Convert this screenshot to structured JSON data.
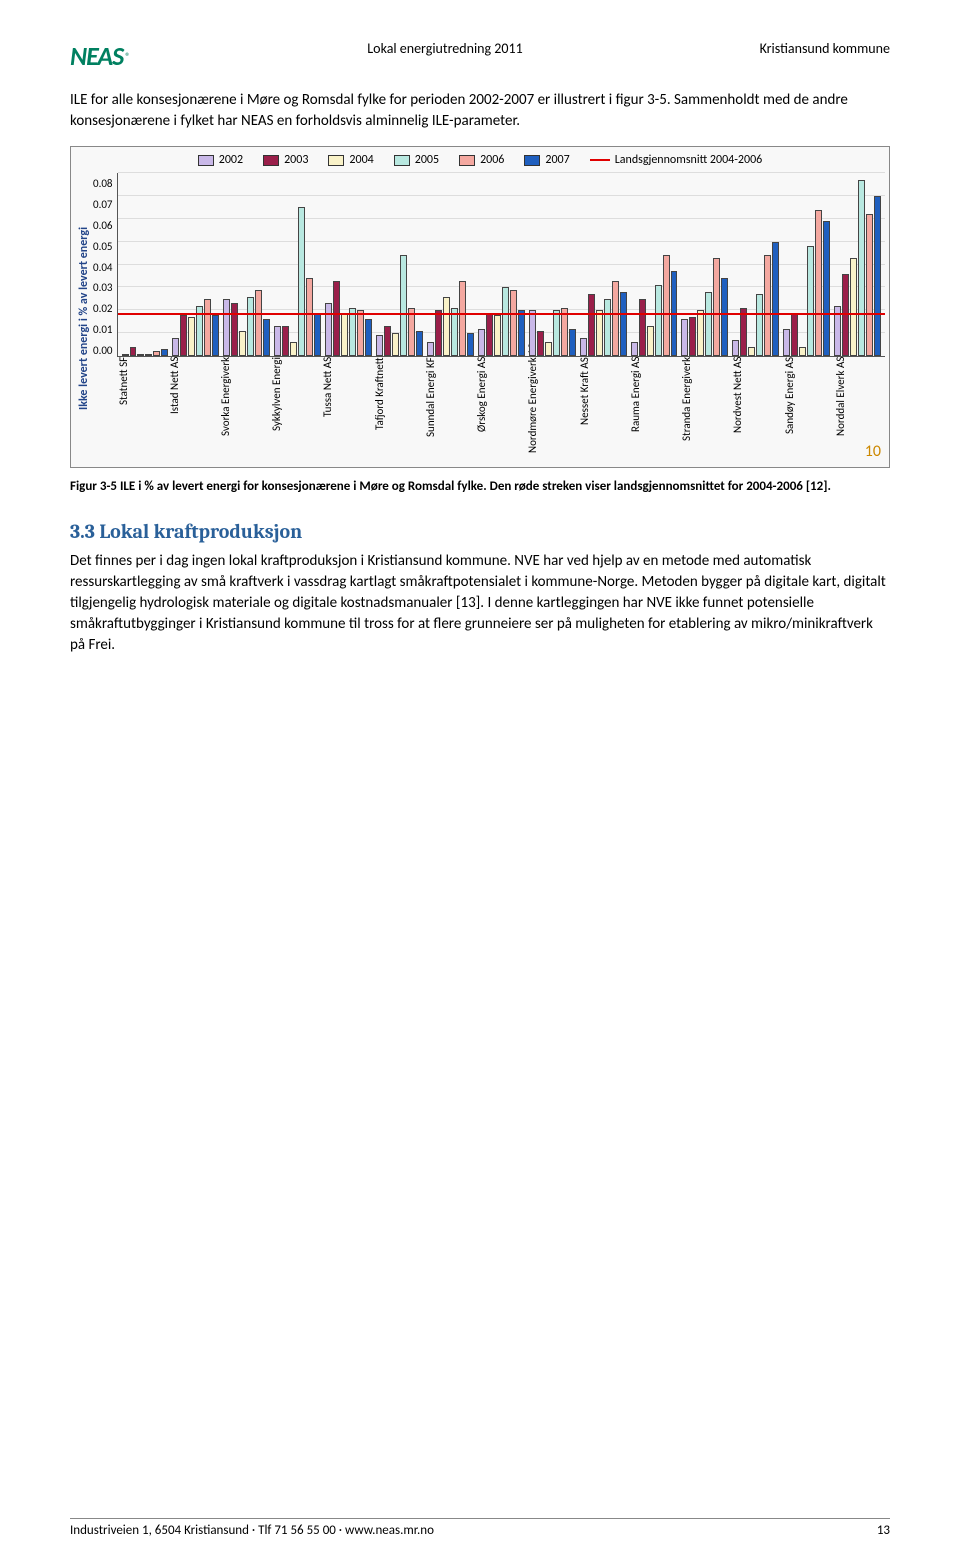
{
  "header": {
    "title_center": "Lokal energiutredning 2011",
    "title_right": "Kristiansund kommune",
    "logo_text": "NEAS",
    "logo_reg": "®"
  },
  "intro_paragraph": "ILE for alle konsesjonærene i Møre og Romsdal fylke for perioden 2002-2007 er illustrert i figur 3-5. Sammenholdt med de andre konsesjonærene i fylket har NEAS en forholdsvis alminnelig ILE-parameter.",
  "chart": {
    "type": "bar",
    "ylabel": "Ikke levert energi i % av levert energi",
    "ylim": [
      0,
      0.08
    ],
    "ytick_step": 0.01,
    "yticks": [
      "0.08",
      "0.07",
      "0.06",
      "0.05",
      "0.04",
      "0.03",
      "0.02",
      "0.01",
      "0.00"
    ],
    "background_color": "#f8f8f8",
    "grid_color": "#dddddd",
    "red_line_value": 0.018,
    "red_line_color": "#e00000",
    "corner_number": "10",
    "legend": [
      {
        "label": "2002",
        "color": "#c9b8e8"
      },
      {
        "label": "2003",
        "color": "#9a1f4a"
      },
      {
        "label": "2004",
        "color": "#f9f2c8"
      },
      {
        "label": "2005",
        "color": "#b8e8e0"
      },
      {
        "label": "2006",
        "color": "#f4a8a0"
      },
      {
        "label": "2007",
        "color": "#1f5fbf"
      },
      {
        "label": "Landsgjennomsnitt 2004-2006",
        "color": "#e00000",
        "is_line": true
      }
    ],
    "categories": [
      "Statnett SF",
      "Istad Nett AS",
      "Svorka Energiverk",
      "Sykkylven Energi",
      "Tussa Nett AS",
      "Tafjord Kraftnett",
      "Sunndal Energi KF",
      "Ørskog Energi AS",
      "Nordmøre Energiverk AS",
      "Nesset Kraft AS",
      "Rauma Energi AS",
      "Stranda Energiverk",
      "Nordvest Nett AS",
      "Sandøy Energi AS",
      "Norddal Elverk AS"
    ],
    "series": [
      [
        0.0,
        0.008,
        0.025,
        0.013,
        0.023,
        0.009,
        0.006,
        0.012,
        0.02,
        0.008,
        0.006,
        0.016,
        0.007,
        0.012,
        0.022
      ],
      [
        0.004,
        0.018,
        0.023,
        0.013,
        0.033,
        0.013,
        0.02,
        0.019,
        0.011,
        0.027,
        0.025,
        0.017,
        0.021,
        0.019,
        0.036
      ],
      [
        0.0,
        0.017,
        0.011,
        0.006,
        0.019,
        0.01,
        0.026,
        0.018,
        0.006,
        0.02,
        0.013,
        0.02,
        0.004,
        0.004,
        0.043
      ],
      [
        0.001,
        0.022,
        0.026,
        0.065,
        0.021,
        0.044,
        0.021,
        0.03,
        0.02,
        0.025,
        0.031,
        0.028,
        0.027,
        0.048,
        0.077
      ],
      [
        0.002,
        0.025,
        0.029,
        0.034,
        0.02,
        0.021,
        0.033,
        0.029,
        0.021,
        0.033,
        0.044,
        0.043,
        0.044,
        0.064,
        0.062
      ],
      [
        0.003,
        0.018,
        0.016,
        0.019,
        0.016,
        0.011,
        0.01,
        0.02,
        0.012,
        0.028,
        0.037,
        0.034,
        0.05,
        0.059,
        0.07
      ]
    ],
    "bar_colors": [
      "#c9b8e8",
      "#9a1f4a",
      "#f9f2c8",
      "#b8e8e0",
      "#f4a8a0",
      "#1f5fbf"
    ]
  },
  "figure_caption": "Figur 3-5 ILE i % av levert energi for konsesjonærene i Møre og Romsdal fylke. Den røde streken viser landsgjennomsnittet for 2004-2006 [12].",
  "section": {
    "heading": "3.3 Lokal kraftproduksjon",
    "body": "Det finnes per i dag ingen lokal kraftproduksjon i Kristiansund kommune. NVE har ved hjelp av en metode med automatisk ressurskartlegging av små kraftverk i vassdrag kartlagt småkraftpotensialet i kommune-Norge. Metoden bygger på digitale kart, digitalt tilgjengelig hydrologisk materiale og digitale kostnadsmanualer [13]. I denne kartleggingen har NVE ikke funnet potensielle småkraftutbygginger i Kristiansund kommune til tross for at flere grunneiere ser på muligheten for etablering av mikro/minikraftverk på Frei."
  },
  "footer": {
    "left": "Industriveien 1, 6504 Kristiansund · Tlf 71 56 55 00 · www.neas.mr.no",
    "page": "13"
  }
}
